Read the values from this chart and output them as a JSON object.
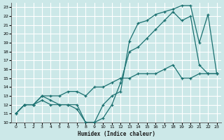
{
  "xlabel": "Humidex (Indice chaleur)",
  "bg_color": "#cce8e8",
  "line_color": "#1a7070",
  "grid_color": "#ffffff",
  "xlim": [
    -0.5,
    23.5
  ],
  "ylim": [
    10,
    23.5
  ],
  "xticks": [
    0,
    1,
    2,
    3,
    4,
    5,
    6,
    7,
    8,
    9,
    10,
    11,
    12,
    13,
    14,
    15,
    16,
    17,
    18,
    19,
    20,
    21,
    22,
    23
  ],
  "yticks": [
    10,
    11,
    12,
    13,
    14,
    15,
    16,
    17,
    18,
    19,
    20,
    21,
    22,
    23
  ],
  "line1_x": [
    0,
    1,
    2,
    3,
    4,
    5,
    6,
    7,
    8,
    9,
    10,
    11,
    12,
    13,
    14,
    15,
    16,
    17,
    18,
    19,
    20,
    21,
    22,
    23
  ],
  "line1_y": [
    11,
    12,
    12,
    12.5,
    12,
    12,
    12,
    11.5,
    10,
    10,
    10.5,
    12,
    14.5,
    18,
    18.5,
    19.5,
    20.5,
    21.5,
    22.5,
    21.5,
    22,
    16.5,
    15.5,
    15.5
  ],
  "line2_x": [
    0,
    1,
    2,
    3,
    4,
    5,
    6,
    7,
    8,
    9,
    10,
    11,
    12,
    13,
    14,
    15,
    16,
    17,
    18,
    19,
    20,
    21,
    22,
    23
  ],
  "line2_y": [
    11,
    12,
    12,
    13,
    12.5,
    12,
    12,
    12,
    10,
    10,
    12,
    13,
    13.5,
    19.2,
    21.2,
    21.5,
    22.2,
    22.5,
    22.8,
    23.2,
    23.2,
    19,
    22.2,
    15.5
  ],
  "line3_x": [
    0,
    1,
    2,
    3,
    4,
    5,
    6,
    7,
    8,
    9,
    10,
    11,
    12,
    13,
    14,
    15,
    16,
    17,
    18,
    19,
    20,
    21,
    22,
    23
  ],
  "line3_y": [
    11,
    12,
    12,
    13,
    13,
    13,
    13.5,
    13.5,
    13,
    14,
    14,
    14.5,
    15,
    15,
    15.5,
    15.5,
    15.5,
    16,
    16.5,
    15,
    15,
    15.5,
    15.5,
    15.5
  ]
}
